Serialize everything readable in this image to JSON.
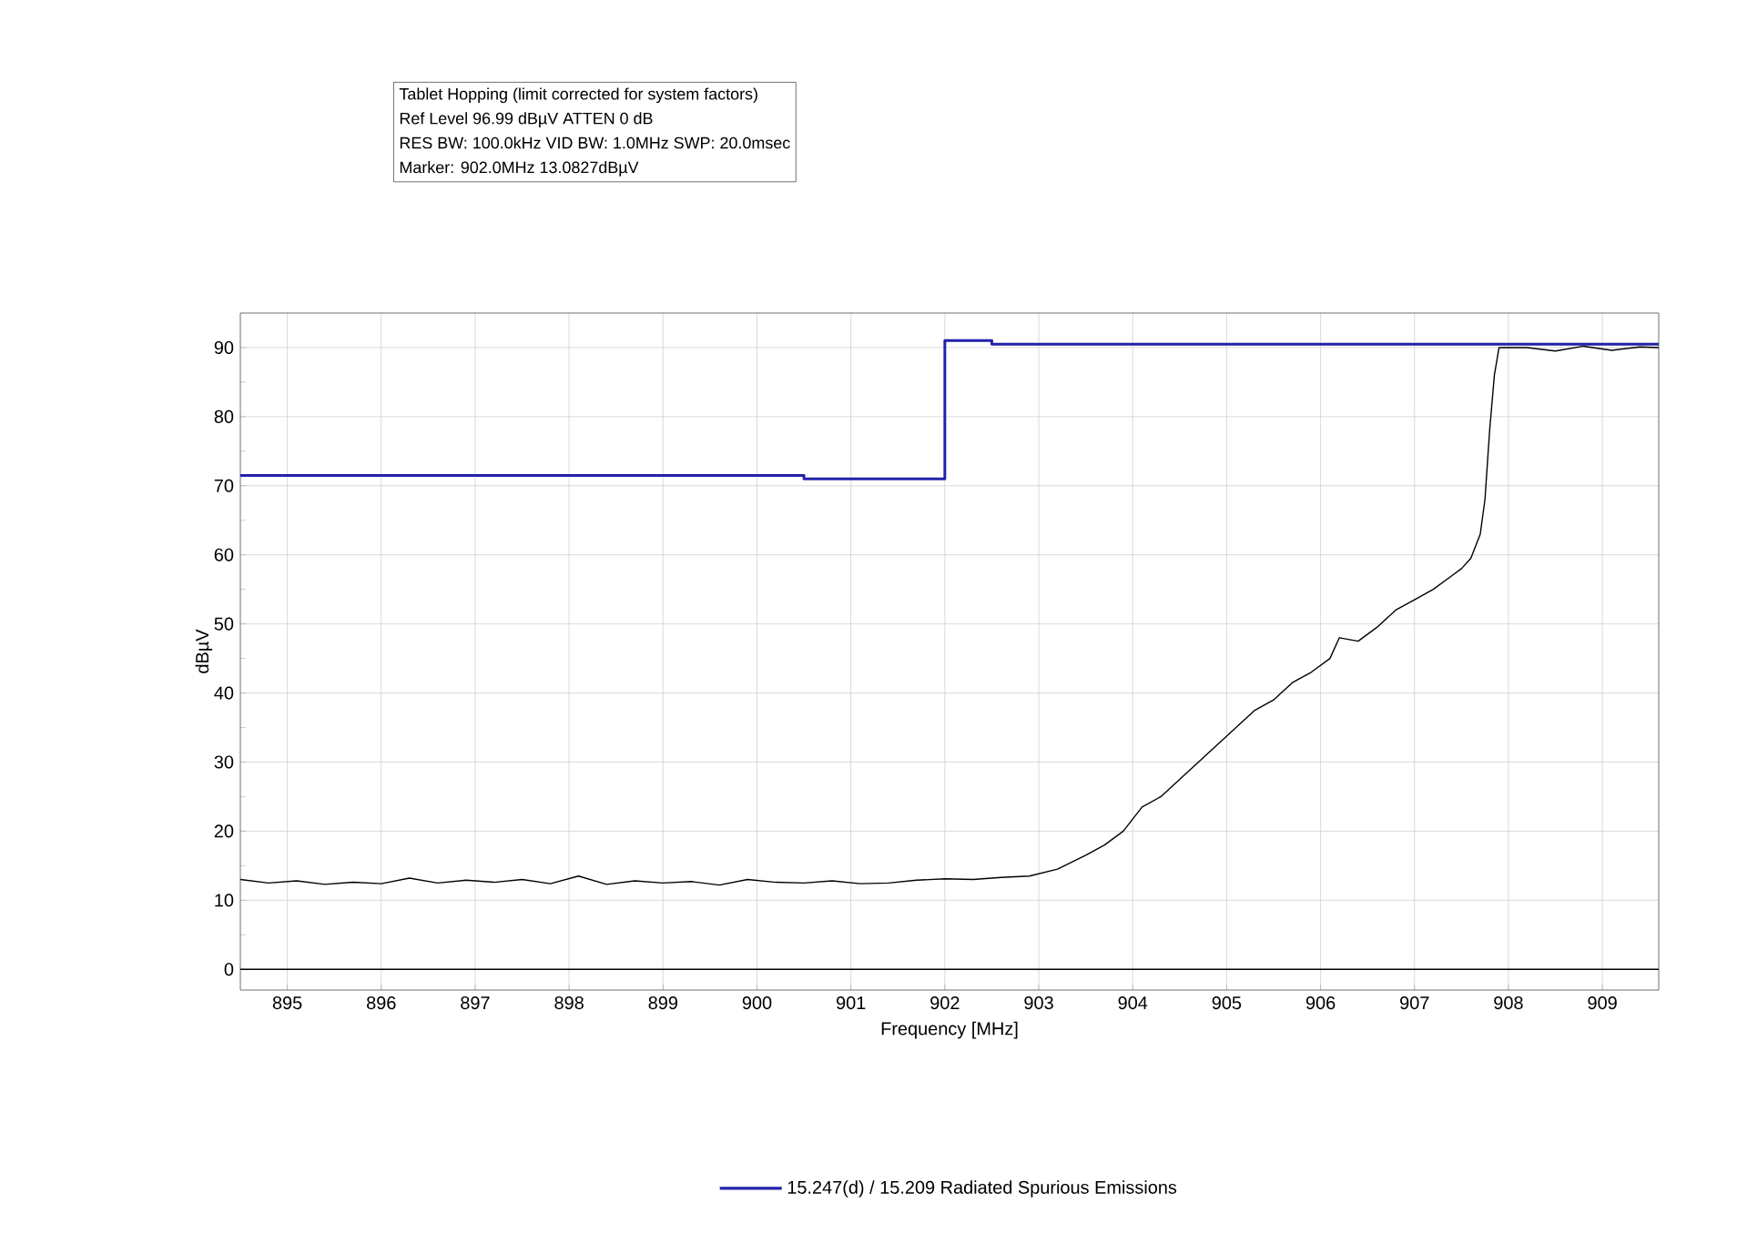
{
  "chart_data": {
    "type": "line",
    "title": "Tablet Hopping (limit corrected for system factors)",
    "annotations": [
      "Ref Level 96.99 dBµV    ATTEN 0 dB",
      "RES BW: 100.0kHz  VID BW: 1.0MHz  SWP: 20.0msec",
      "Marker: 902.0MHz  13.0827dBµV"
    ],
    "xlabel": "Frequency [MHz]",
    "ylabel": "dBµV",
    "xlim": [
      894.5,
      909.6
    ],
    "ylim": [
      -3,
      95
    ],
    "xticks": [
      895,
      896,
      897,
      898,
      899,
      900,
      901,
      902,
      903,
      904,
      905,
      906,
      907,
      908,
      909
    ],
    "yticks": [
      0,
      10,
      20,
      30,
      40,
      50,
      60,
      70,
      80,
      90
    ],
    "grid": true,
    "legend": "bottom",
    "ref_lines": [
      {
        "axis": "y",
        "value": 0
      }
    ],
    "series": [
      {
        "name": "15.247(d) / 15.209 Radiated Spurious Emissions",
        "color": "#2222aa",
        "x": [
          894.5,
          900.5,
          900.5,
          902.0,
          902.0,
          902.5,
          902.5,
          909.6
        ],
        "values": [
          71.5,
          71.5,
          71.0,
          71.0,
          91.0,
          91.0,
          90.5,
          90.5
        ]
      },
      {
        "color": "#000000",
        "x": [
          894.5,
          894.8,
          895.1,
          895.4,
          895.7,
          896.0,
          896.3,
          896.6,
          896.9,
          897.2,
          897.5,
          897.8,
          898.1,
          898.4,
          898.7,
          899.0,
          899.3,
          899.6,
          899.9,
          900.2,
          900.5,
          900.8,
          901.1,
          901.4,
          901.7,
          902.0,
          902.3,
          902.6,
          902.9,
          903.2,
          903.5,
          903.7,
          903.9,
          904.1,
          904.3,
          904.5,
          904.7,
          904.9,
          905.1,
          905.3,
          905.5,
          905.7,
          905.9,
          906.1,
          906.2,
          906.4,
          906.6,
          906.8,
          907.0,
          907.2,
          907.4,
          907.5,
          907.6,
          907.7,
          907.75,
          907.8,
          907.85,
          907.9,
          908.2,
          908.5,
          908.8,
          909.1,
          909.4,
          909.6
        ],
        "values": [
          13.0,
          12.5,
          12.8,
          12.3,
          12.6,
          12.4,
          13.2,
          12.5,
          12.9,
          12.6,
          13.0,
          12.4,
          13.5,
          12.3,
          12.8,
          12.5,
          12.7,
          12.2,
          13.0,
          12.6,
          12.5,
          12.8,
          12.4,
          12.5,
          12.9,
          13.1,
          13.0,
          13.3,
          13.5,
          14.5,
          16.5,
          18.0,
          20.0,
          23.5,
          25.0,
          27.5,
          30.0,
          32.5,
          35.0,
          37.5,
          39.0,
          41.5,
          43.0,
          45.0,
          48.0,
          47.5,
          49.5,
          52.0,
          53.5,
          55.0,
          57.0,
          58.0,
          59.5,
          63.0,
          68.0,
          78.0,
          86.0,
          90.0,
          90.0,
          89.5,
          90.2,
          89.6,
          90.1,
          90.0
        ]
      }
    ]
  }
}
